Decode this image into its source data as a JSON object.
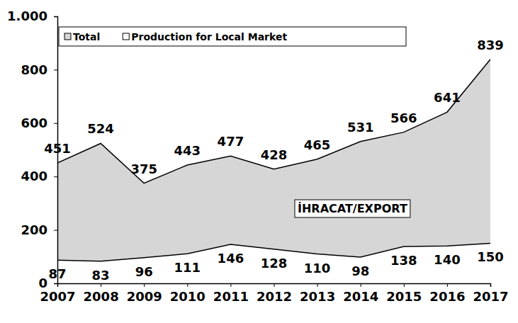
{
  "chart_data": {
    "type": "area",
    "categories": [
      "2007",
      "2008",
      "2009",
      "2010",
      "2011",
      "2012",
      "2013",
      "2014",
      "2015",
      "2016",
      "2017"
    ],
    "series": [
      {
        "name": "Total",
        "color": "#d6d6d6",
        "values": [
          451,
          524,
          375,
          443,
          477,
          428,
          465,
          531,
          566,
          641,
          839
        ]
      },
      {
        "name": "Production for Local Market",
        "color": "#ffffff",
        "values": [
          87,
          83,
          96,
          111,
          146,
          128,
          110,
          98,
          138,
          140,
          150
        ]
      }
    ],
    "annotations": [
      "İHRACAT/EXPORT"
    ],
    "ylim": [
      0,
      1000
    ],
    "yticks": [
      0,
      200,
      400,
      600,
      800,
      {
        "value": 1000,
        "label": "1.000"
      }
    ],
    "grid": false,
    "legend": "top",
    "stacked": false,
    "data_labels": true
  }
}
